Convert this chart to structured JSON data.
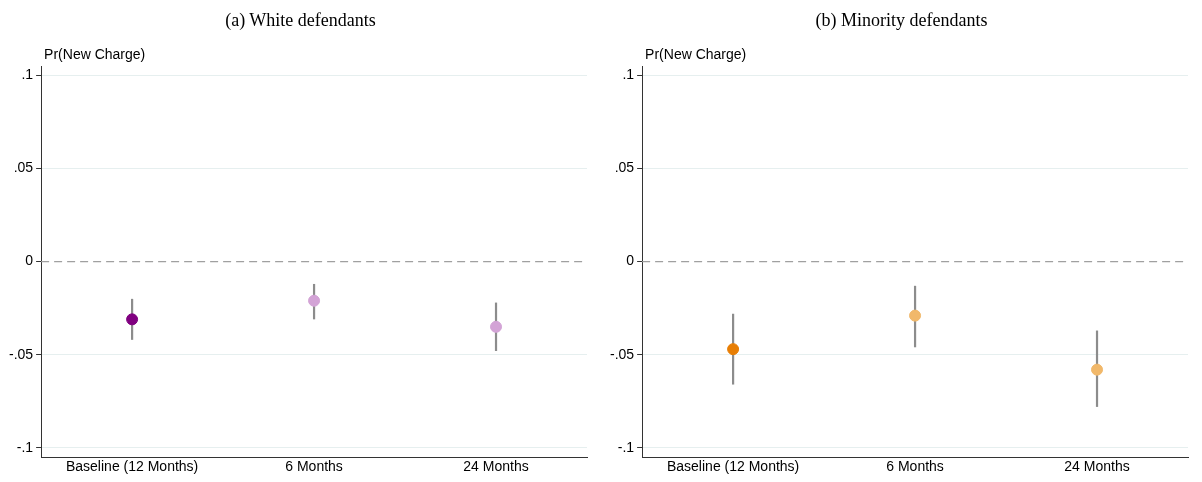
{
  "chart_data": [
    {
      "type": "scatter",
      "title": "(a) White defendants",
      "ylabel": "Pr(New Charge)",
      "categories": [
        "Baseline (12 Months)",
        "6 Months",
        "24 Months"
      ],
      "values": [
        -0.031,
        -0.021,
        -0.035
      ],
      "colors": [
        "#800080",
        "#d3a3d6",
        "#d3a3d6"
      ],
      "errors": [
        [
          -0.042,
          -0.02
        ],
        [
          -0.031,
          -0.012
        ],
        [
          -0.048,
          -0.022
        ]
      ],
      "ylim": [
        -0.105,
        0.105
      ],
      "yticks": [
        {
          "value": -0.1,
          "label": "-.1"
        },
        {
          "value": -0.05,
          "label": "-.05"
        },
        0,
        {
          "value": 0.05,
          "label": ".05"
        },
        {
          "value": 0.1,
          "label": ".1"
        }
      ],
      "ref_lines": [
        {
          "axis": "y",
          "value": 0,
          "color": "#a0a0a0",
          "line_style": "dashed"
        }
      ],
      "grid": "y",
      "marker": "circle"
    },
    {
      "type": "scatter",
      "title": "(b) Minority defendants",
      "ylabel": "Pr(New Charge)",
      "categories": [
        "Baseline (12 Months)",
        "6 Months",
        "24 Months"
      ],
      "values": [
        -0.047,
        -0.029,
        -0.058
      ],
      "colors": [
        "#e87e04",
        "#f1b86a",
        "#f1b86a"
      ],
      "errors": [
        [
          -0.066,
          -0.028
        ],
        [
          -0.046,
          -0.013
        ],
        [
          -0.078,
          -0.037
        ]
      ],
      "ylim": [
        -0.105,
        0.105
      ],
      "yticks": [
        {
          "value": -0.1,
          "label": "-.1"
        },
        {
          "value": -0.05,
          "label": "-.05"
        },
        0,
        {
          "value": 0.05,
          "label": ".05"
        },
        {
          "value": 0.1,
          "label": ".1"
        }
      ],
      "ref_lines": [
        {
          "axis": "y",
          "value": 0,
          "color": "#a0a0a0",
          "line_style": "dashed"
        }
      ],
      "grid": "y",
      "marker": "circle"
    }
  ]
}
